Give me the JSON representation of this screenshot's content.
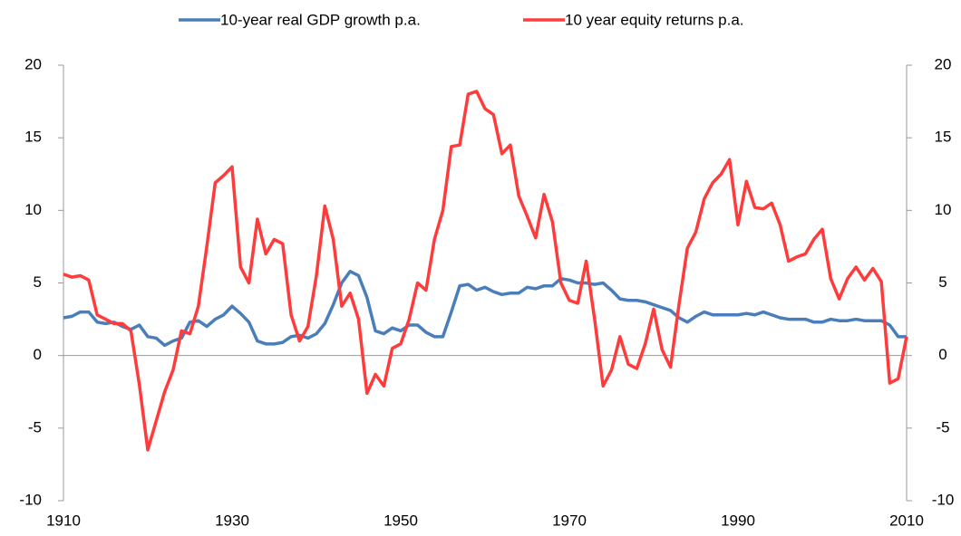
{
  "chart_data": {
    "type": "line",
    "x": [
      1910,
      1911,
      1912,
      1913,
      1914,
      1915,
      1916,
      1917,
      1918,
      1919,
      1920,
      1921,
      1922,
      1923,
      1924,
      1925,
      1926,
      1927,
      1928,
      1929,
      1930,
      1931,
      1932,
      1933,
      1934,
      1935,
      1936,
      1937,
      1938,
      1939,
      1940,
      1941,
      1942,
      1943,
      1944,
      1945,
      1946,
      1947,
      1948,
      1949,
      1950,
      1951,
      1952,
      1953,
      1954,
      1955,
      1956,
      1957,
      1958,
      1959,
      1960,
      1961,
      1962,
      1963,
      1964,
      1965,
      1966,
      1967,
      1968,
      1969,
      1970,
      1971,
      1972,
      1973,
      1974,
      1975,
      1976,
      1977,
      1978,
      1979,
      1980,
      1981,
      1982,
      1983,
      1984,
      1985,
      1986,
      1987,
      1988,
      1989,
      1990,
      1991,
      1992,
      1993,
      1994,
      1995,
      1996,
      1997,
      1998,
      1999,
      2000,
      2001,
      2002,
      2003,
      2004,
      2005,
      2006,
      2007,
      2008,
      2009,
      2010
    ],
    "series": [
      {
        "name": "10-year real GDP growth p.a.",
        "color": "#4a7ebb",
        "values": [
          2.6,
          2.7,
          3.0,
          3.0,
          2.3,
          2.2,
          2.3,
          2.0,
          1.8,
          2.1,
          1.3,
          1.2,
          0.7,
          1.0,
          1.2,
          2.3,
          2.4,
          2.0,
          2.5,
          2.8,
          3.4,
          2.9,
          2.3,
          1.0,
          0.8,
          0.8,
          0.9,
          1.3,
          1.4,
          1.2,
          1.5,
          2.2,
          3.5,
          5.0,
          5.8,
          5.5,
          4.0,
          1.7,
          1.5,
          1.9,
          1.7,
          2.1,
          2.1,
          1.6,
          1.3,
          1.3,
          3.0,
          4.8,
          4.9,
          4.5,
          4.7,
          4.4,
          4.2,
          4.3,
          4.3,
          4.7,
          4.6,
          4.8,
          4.8,
          5.3,
          5.2,
          5.0,
          5.0,
          4.9,
          5.0,
          4.5,
          3.9,
          3.8,
          3.8,
          3.7,
          3.5,
          3.3,
          3.1,
          2.6,
          2.3,
          2.7,
          3.0,
          2.8,
          2.8,
          2.8,
          2.8,
          2.9,
          2.8,
          3.0,
          2.8,
          2.6,
          2.5,
          2.5,
          2.5,
          2.3,
          2.3,
          2.5,
          2.4,
          2.4,
          2.5,
          2.4,
          2.4,
          2.4,
          2.1,
          1.3,
          1.3
        ]
      },
      {
        "name": "10 year equity returns p.a.",
        "color": "#ff3b3b",
        "axis": "y2",
        "values": [
          5.6,
          5.4,
          5.5,
          5.2,
          2.8,
          2.5,
          2.2,
          2.2,
          1.7,
          -2.0,
          -6.5,
          -4.5,
          -2.5,
          -1.0,
          1.7,
          1.5,
          3.4,
          7.5,
          11.9,
          12.4,
          13.0,
          6.1,
          5.0,
          9.4,
          7.0,
          8.0,
          7.7,
          2.8,
          1.0,
          2.0,
          5.5,
          10.3,
          8.0,
          3.4,
          4.3,
          2.5,
          -2.6,
          -1.3,
          -2.1,
          0.5,
          0.8,
          2.5,
          5.0,
          4.5,
          8.0,
          10.0,
          14.4,
          14.5,
          18.0,
          18.2,
          17.0,
          16.6,
          13.9,
          14.5,
          11.0,
          9.6,
          8.1,
          11.1,
          9.2,
          5.0,
          3.8,
          3.6,
          6.5,
          2.5,
          -2.1,
          -1.0,
          1.3,
          -0.6,
          -0.9,
          0.8,
          3.2,
          0.4,
          -0.8,
          3.5,
          7.4,
          8.5,
          10.8,
          11.9,
          12.5,
          13.5,
          9.0,
          12.0,
          10.2,
          10.1,
          10.5,
          9.0,
          6.5,
          6.8,
          7.0,
          8.0,
          8.7,
          5.3,
          3.9,
          5.3,
          6.1,
          5.2,
          6.0,
          5.1,
          -1.9,
          -1.6,
          1.3
        ]
      }
    ],
    "xlim": [
      1910,
      2010
    ],
    "xticks": [
      1910,
      1930,
      1950,
      1970,
      1990,
      2010
    ],
    "ylim": [
      -10,
      20
    ],
    "yticks": [
      -10,
      -5,
      0,
      5,
      10,
      15,
      20
    ],
    "y2lim": [
      -10,
      20
    ],
    "y2ticks": [
      -10,
      -5,
      0,
      5,
      10,
      15,
      20
    ],
    "legend": "top"
  }
}
